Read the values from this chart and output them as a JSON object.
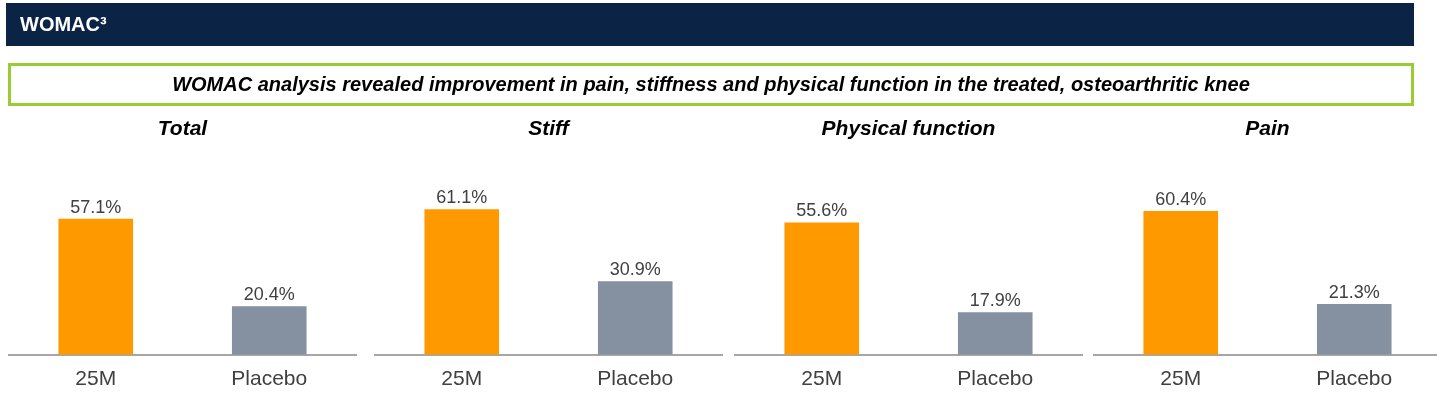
{
  "chart_data": [
    {
      "type": "other",
      "title": "WOMAC³",
      "subtitle": "WOMAC analysis revealed improvement in pain, stiffness and physical function in the treated, osteoarthritic knee"
    },
    {
      "type": "bar",
      "title": "Total",
      "categories": [
        "25M",
        "Placebo"
      ],
      "values": [
        57.1,
        20.4
      ],
      "value_labels": [
        "57.1%",
        "20.4%"
      ],
      "colors": [
        "#ff9900",
        "#8591a1"
      ],
      "tick_labels": "x",
      "grid": false
    },
    {
      "type": "bar",
      "title": "Stiff",
      "categories": [
        "25M",
        "Placebo"
      ],
      "values": [
        61.1,
        30.9
      ],
      "value_labels": [
        "61.1%",
        "30.9%"
      ],
      "colors": [
        "#ff9900",
        "#8591a1"
      ],
      "tick_labels": "x",
      "grid": false
    },
    {
      "type": "bar",
      "title": "Physical function",
      "categories": [
        "25M",
        "Placebo"
      ],
      "values": [
        55.6,
        17.9
      ],
      "value_labels": [
        "55.6%",
        "17.9%"
      ],
      "colors": [
        "#ff9900",
        "#8591a1"
      ],
      "tick_labels": "x",
      "grid": false
    },
    {
      "type": "bar",
      "title": "Pain",
      "categories": [
        "25M",
        "Placebo"
      ],
      "values": [
        60.4,
        21.3
      ],
      "value_labels": [
        "60.4%",
        "21.3%"
      ],
      "colors": [
        "#ff9900",
        "#8591a1"
      ],
      "tick_labels": "x",
      "grid": false
    }
  ]
}
